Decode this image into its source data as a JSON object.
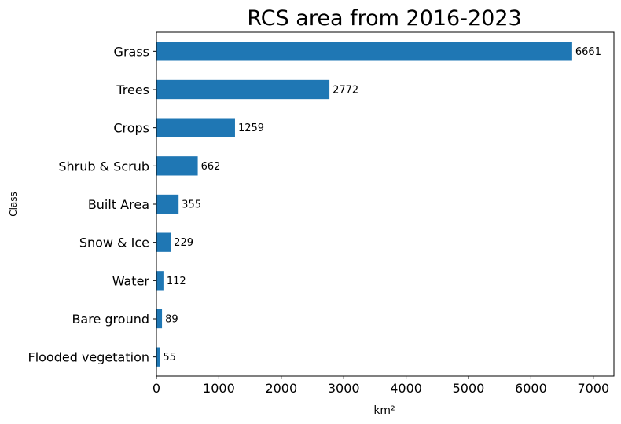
{
  "chart_data": {
    "type": "bar",
    "orientation": "horizontal",
    "title": "RCS area from 2016-2023",
    "xlabel": "km²",
    "ylabel": "Class",
    "categories": [
      "Flooded vegetation",
      "Bare ground",
      "Water",
      "Snow & Ice",
      "Built Area",
      "Shrub & Scrub",
      "Crops",
      "Trees",
      "Grass"
    ],
    "values": [
      55,
      89,
      112,
      229,
      355,
      662,
      1259,
      2772,
      6661
    ],
    "value_labels": [
      "55",
      "89",
      "112",
      "229",
      "355",
      "662",
      "1259",
      "2772",
      "6661"
    ],
    "xlim": [
      0,
      7330
    ],
    "xticks": [
      0,
      1000,
      2000,
      3000,
      4000,
      5000,
      6000,
      7000
    ],
    "xtick_labels": [
      "0",
      "1000",
      "2000",
      "3000",
      "4000",
      "5000",
      "6000",
      "7000"
    ],
    "grid": false,
    "legend": "none",
    "bar_color": "#1f77b4"
  }
}
